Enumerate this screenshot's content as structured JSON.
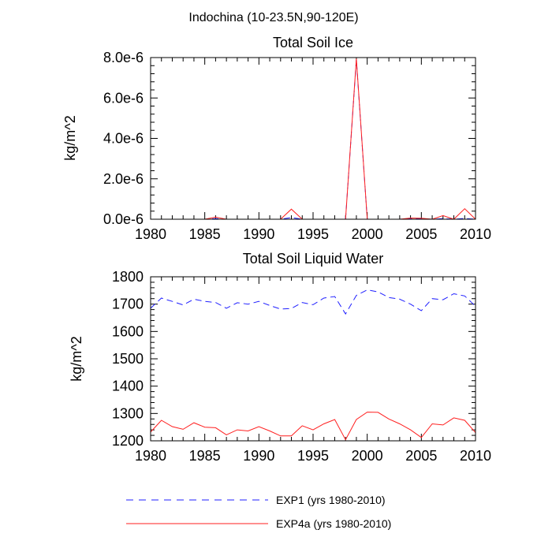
{
  "figure_title": "Indochina (10-23.5N,90-120E)",
  "legend": [
    {
      "label": "EXP1 (yrs 1980-2010)",
      "color": "#1f1fff",
      "dash": "dashed"
    },
    {
      "label": "EXP4a (yrs 1980-2010)",
      "color": "#ff1f1f",
      "dash": "solid"
    }
  ],
  "chart_data": [
    {
      "type": "line",
      "title": "Total Soil Ice",
      "xlabel": "",
      "ylabel": "kg/m^2",
      "xlim": [
        1980,
        2010
      ],
      "ylim": [
        0,
        8e-06
      ],
      "xticks": [
        1980,
        1985,
        1990,
        1995,
        2000,
        2005,
        2010
      ],
      "xtick_labels": [
        "1980",
        "1985",
        "1990",
        "1995",
        "2000",
        "2005",
        "2010"
      ],
      "yticks": [
        0,
        2e-06,
        4e-06,
        6e-06,
        8e-06
      ],
      "ytick_labels": [
        "0.0e-6",
        "2.0e-6",
        "4.0e-6",
        "6.0e-6",
        "8.0e-6"
      ],
      "x": [
        1980,
        1981,
        1982,
        1983,
        1984,
        1985,
        1986,
        1987,
        1988,
        1989,
        1990,
        1991,
        1992,
        1993,
        1994,
        1995,
        1996,
        1997,
        1998,
        1999,
        2000,
        2001,
        2002,
        2003,
        2004,
        2005,
        2006,
        2007,
        2008,
        2009,
        2010
      ],
      "series": [
        {
          "name": "EXP1 (yrs 1980-2010)",
          "color": "#1f1fff",
          "dash": "dashed",
          "values": [
            0,
            0,
            0,
            0,
            0,
            0,
            3e-08,
            0,
            0,
            0,
            0,
            0,
            0,
            8e-08,
            0,
            0,
            0,
            0,
            0,
            7.9e-06,
            0,
            0,
            0,
            0,
            3e-08,
            2e-08,
            0,
            3e-08,
            0,
            4e-08,
            0
          ]
        },
        {
          "name": "EXP4a (yrs 1980-2010)",
          "color": "#ff1f1f",
          "dash": "solid",
          "values": [
            0,
            0,
            0,
            0,
            0,
            0,
            1e-07,
            0,
            0,
            0,
            0,
            0,
            0,
            5e-07,
            0,
            0,
            0,
            0,
            0,
            7.95e-06,
            0,
            0,
            0,
            0,
            6e-08,
            5e-08,
            0,
            1.8e-07,
            0,
            5.2e-07,
            0
          ]
        }
      ]
    },
    {
      "type": "line",
      "title": "Total Soil Liquid Water",
      "xlabel": "",
      "ylabel": "kg/m^2",
      "xlim": [
        1980,
        2010
      ],
      "ylim": [
        1200,
        1800
      ],
      "xticks": [
        1980,
        1985,
        1990,
        1995,
        2000,
        2005,
        2010
      ],
      "xtick_labels": [
        "1980",
        "1985",
        "1990",
        "1995",
        "2000",
        "2005",
        "2010"
      ],
      "yticks": [
        1200,
        1300,
        1400,
        1500,
        1600,
        1700,
        1800
      ],
      "ytick_labels": [
        "1200",
        "1300",
        "1400",
        "1500",
        "1600",
        "1700",
        "1800"
      ],
      "x": [
        1980,
        1981,
        1982,
        1983,
        1984,
        1985,
        1986,
        1987,
        1988,
        1989,
        1990,
        1991,
        1992,
        1993,
        1994,
        1995,
        1996,
        1997,
        1998,
        1999,
        2000,
        2001,
        2002,
        2003,
        2004,
        2005,
        2006,
        2007,
        2008,
        2009,
        2010
      ],
      "series": [
        {
          "name": "EXP1 (yrs 1980-2010)",
          "color": "#1f1fff",
          "dash": "dashed",
          "values": [
            1685,
            1722,
            1710,
            1697,
            1718,
            1710,
            1706,
            1685,
            1705,
            1700,
            1710,
            1695,
            1682,
            1684,
            1706,
            1698,
            1722,
            1728,
            1664,
            1732,
            1752,
            1745,
            1724,
            1718,
            1700,
            1676,
            1720,
            1716,
            1738,
            1730,
            1692
          ]
        },
        {
          "name": "EXP4a (yrs 1980-2010)",
          "color": "#ff1f1f",
          "dash": "solid",
          "values": [
            1232,
            1275,
            1252,
            1242,
            1266,
            1250,
            1248,
            1222,
            1240,
            1236,
            1252,
            1236,
            1218,
            1218,
            1255,
            1240,
            1262,
            1278,
            1204,
            1278,
            1305,
            1304,
            1280,
            1262,
            1240,
            1212,
            1262,
            1258,
            1284,
            1275,
            1230
          ]
        }
      ]
    }
  ]
}
